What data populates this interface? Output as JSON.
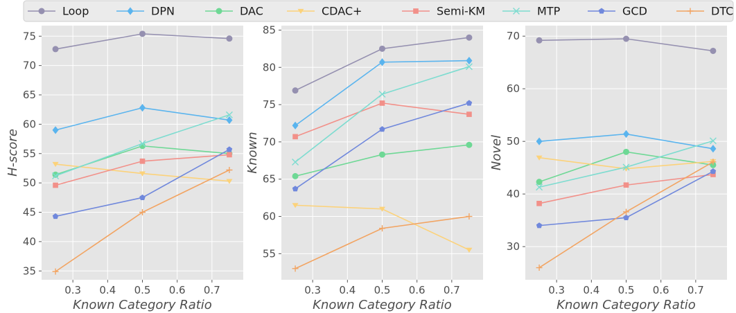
{
  "legend": {
    "placement": "top",
    "entries": [
      {
        "name": "Loop",
        "color": "#9590b0",
        "marker": "circle"
      },
      {
        "name": "DPN",
        "color": "#5ab4ee",
        "marker": "diamond"
      },
      {
        "name": "DAC",
        "color": "#6ed895",
        "marker": "circle"
      },
      {
        "name": "CDAC+",
        "color": "#fcd27a",
        "marker": "triangle-down"
      },
      {
        "name": "Semi-KM",
        "color": "#f29089",
        "marker": "square"
      },
      {
        "name": "MTP",
        "color": "#7ddcd0",
        "marker": "x"
      },
      {
        "name": "GCD",
        "color": "#7088dc",
        "marker": "pentagon"
      },
      {
        "name": "DTC",
        "color": "#f2a462",
        "marker": "plus"
      }
    ]
  },
  "chart_data": [
    {
      "type": "line",
      "title": "",
      "xlabel": "Known Category Ratio",
      "ylabel": "H-score",
      "x": [
        0.25,
        0.5,
        0.75
      ],
      "xlim": [
        0.21,
        0.79
      ],
      "ylim": [
        33.5,
        76.8
      ],
      "xticks": [
        0.3,
        0.4,
        0.5,
        0.6,
        0.7
      ],
      "xtick_labels": [
        "0.3",
        "0.4",
        "0.5",
        "0.6",
        "0.7"
      ],
      "yticks": [
        35,
        40,
        45,
        50,
        55,
        60,
        65,
        70,
        75
      ],
      "ytick_labels": [
        "35",
        "40",
        "45",
        "50",
        "55",
        "60",
        "65",
        "70",
        "75"
      ],
      "grid": true,
      "series": [
        {
          "name": "Loop",
          "values": [
            72.8,
            75.4,
            74.6
          ]
        },
        {
          "name": "DPN",
          "values": [
            59.0,
            62.8,
            60.7
          ]
        },
        {
          "name": "DAC",
          "values": [
            51.4,
            56.3,
            55.0
          ]
        },
        {
          "name": "CDAC+",
          "values": [
            53.2,
            51.6,
            50.3
          ]
        },
        {
          "name": "Semi-KM",
          "values": [
            49.6,
            53.7,
            54.8
          ]
        },
        {
          "name": "MTP",
          "values": [
            51.2,
            56.7,
            61.6
          ]
        },
        {
          "name": "GCD",
          "values": [
            44.3,
            47.5,
            55.7
          ]
        },
        {
          "name": "DTC",
          "values": [
            34.9,
            45.0,
            52.2
          ]
        }
      ]
    },
    {
      "type": "line",
      "title": "",
      "xlabel": "Known Category Ratio",
      "ylabel": "Known",
      "x": [
        0.25,
        0.5,
        0.75
      ],
      "xlim": [
        0.21,
        0.79
      ],
      "ylim": [
        51.5,
        85.6
      ],
      "xticks": [
        0.3,
        0.4,
        0.5,
        0.6,
        0.7
      ],
      "xtick_labels": [
        "0.3",
        "0.4",
        "0.5",
        "0.6",
        "0.7"
      ],
      "yticks": [
        55,
        60,
        65,
        70,
        75,
        80,
        85
      ],
      "ytick_labels": [
        "55",
        "60",
        "65",
        "70",
        "75",
        "80",
        "85"
      ],
      "grid": true,
      "series": [
        {
          "name": "Loop",
          "values": [
            76.9,
            82.5,
            84.0
          ]
        },
        {
          "name": "DPN",
          "values": [
            72.2,
            80.7,
            80.9
          ]
        },
        {
          "name": "DAC",
          "values": [
            65.4,
            68.3,
            69.6
          ]
        },
        {
          "name": "CDAC+",
          "values": [
            61.5,
            61.0,
            55.5
          ]
        },
        {
          "name": "Semi-KM",
          "values": [
            70.7,
            75.2,
            73.7
          ]
        },
        {
          "name": "MTP",
          "values": [
            67.3,
            76.4,
            80.1
          ]
        },
        {
          "name": "GCD",
          "values": [
            63.7,
            71.7,
            75.2
          ]
        },
        {
          "name": "DTC",
          "values": [
            53.0,
            58.4,
            60.0
          ]
        }
      ]
    },
    {
      "type": "line",
      "title": "",
      "xlabel": "Known Category Ratio",
      "ylabel": "Novel",
      "x": [
        0.25,
        0.5,
        0.75
      ],
      "xlim": [
        0.21,
        0.79
      ],
      "ylim": [
        23.7,
        72.0
      ],
      "xticks": [
        0.3,
        0.4,
        0.5,
        0.6,
        0.7
      ],
      "xtick_labels": [
        "0.3",
        "0.4",
        "0.5",
        "0.6",
        "0.7"
      ],
      "yticks": [
        30,
        40,
        50,
        60,
        70
      ],
      "ytick_labels": [
        "30",
        "40",
        "50",
        "60",
        "70"
      ],
      "grid": true,
      "series": [
        {
          "name": "Loop",
          "values": [
            69.2,
            69.5,
            67.2
          ]
        },
        {
          "name": "DPN",
          "values": [
            50.0,
            51.4,
            48.6
          ]
        },
        {
          "name": "DAC",
          "values": [
            42.3,
            48.0,
            45.5
          ]
        },
        {
          "name": "CDAC+",
          "values": [
            46.9,
            44.8,
            46.2
          ]
        },
        {
          "name": "Semi-KM",
          "values": [
            38.2,
            41.7,
            43.7
          ]
        },
        {
          "name": "MTP",
          "values": [
            41.3,
            45.1,
            50.1
          ]
        },
        {
          "name": "GCD",
          "values": [
            34.0,
            35.5,
            44.3
          ]
        },
        {
          "name": "DTC",
          "values": [
            26.0,
            36.6,
            46.1
          ]
        }
      ]
    }
  ]
}
